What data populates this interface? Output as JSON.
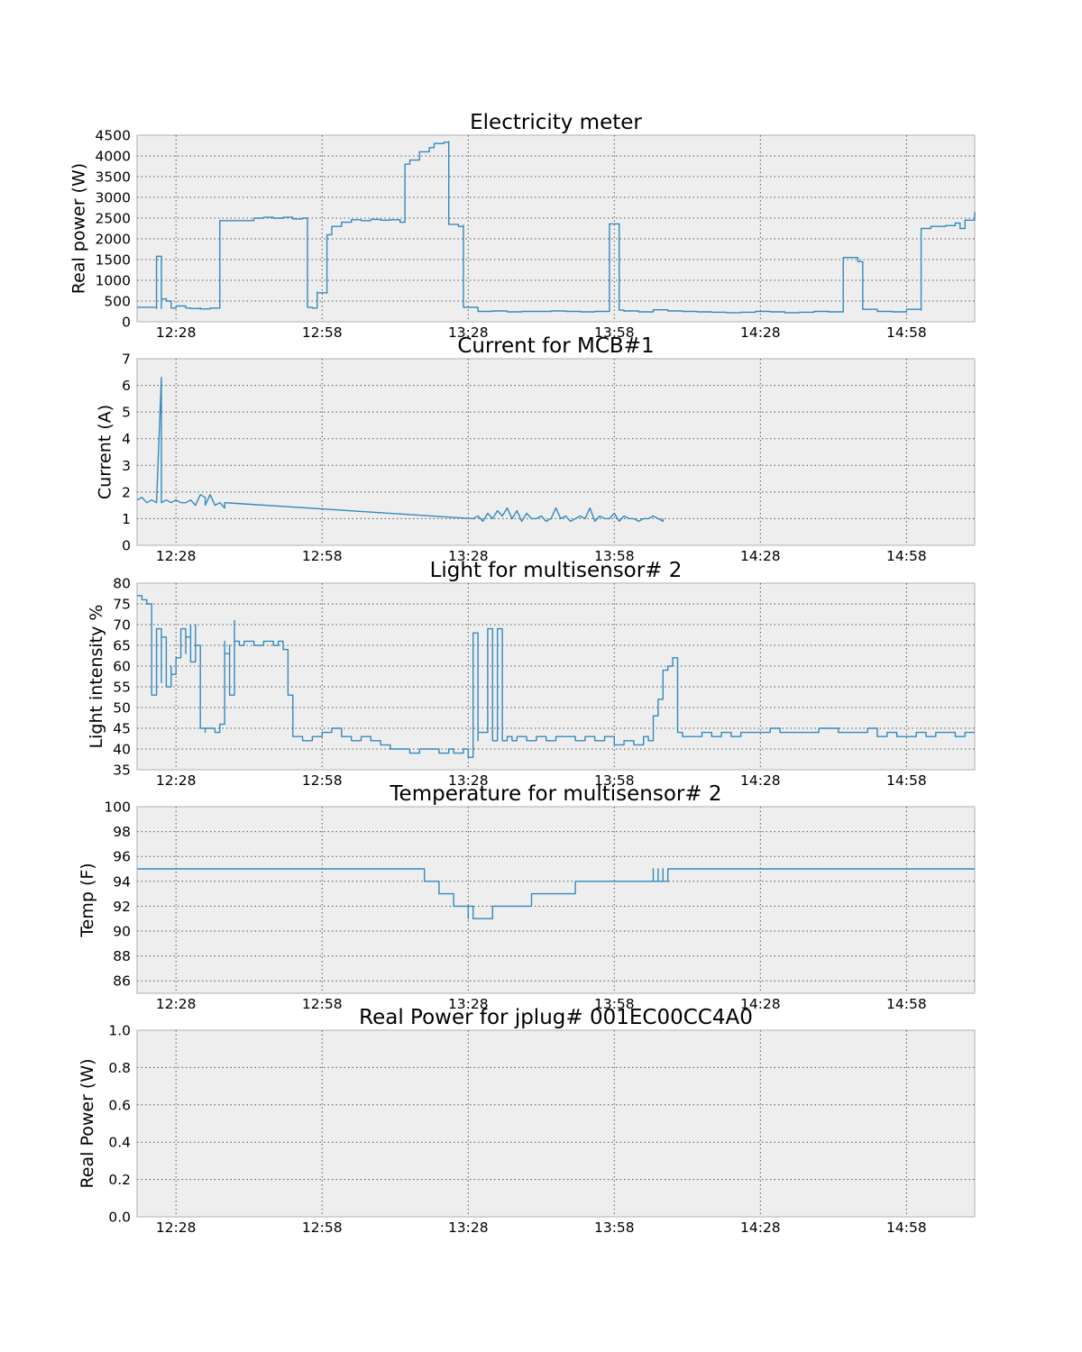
{
  "colors": {
    "series": "#348abd",
    "axes_bg": "#eeeeee",
    "axes_edge": "#bcbcbc"
  },
  "chart_data": [
    {
      "type": "line",
      "title": "Electricity meter",
      "ylabel": "Real power (W)",
      "xlabel": "",
      "xlim": [
        "12:20",
        "15:12"
      ],
      "ylim": [
        0,
        4500
      ],
      "x_ticks": [
        "12:28",
        "12:58",
        "13:28",
        "13:58",
        "14:28",
        "14:58"
      ],
      "y_ticks": [
        "500",
        "1000",
        "1500",
        "2000",
        "2500",
        "3000",
        "3500",
        "4000",
        "4500"
      ],
      "y_tick_values": [
        500,
        1000,
        1500,
        2000,
        2500,
        3000,
        3500,
        4000,
        4500
      ],
      "y_bottom_label": "0",
      "grid": true,
      "step": true,
      "series": [
        {
          "x": [
            "12:20",
            "12:24",
            "12:24",
            "12:25",
            "12:25",
            "12:25",
            "12:26",
            "12:26",
            "12:26",
            "12:26",
            "12:27",
            "12:28",
            "12:28",
            "12:30",
            "12:31",
            "12:33",
            "12:33",
            "12:35",
            "12:37",
            "12:37",
            "12:44",
            "12:44",
            "12:46",
            "12:48",
            "12:50",
            "12:52",
            "12:54",
            "12:55",
            "12:55",
            "12:56",
            "12:57",
            "12:57",
            "12:59",
            "12:59",
            "13:00",
            "13:00",
            "13:02",
            "13:04",
            "13:06",
            "13:08",
            "13:10",
            "13:12",
            "13:14",
            "13:14",
            "13:15",
            "13:16",
            "13:18",
            "13:20",
            "13:21",
            "13:23",
            "13:24",
            "13:24",
            "13:26",
            "13:27",
            "13:27",
            "13:30",
            "13:33",
            "13:36",
            "13:39",
            "13:42",
            "13:45",
            "13:48",
            "13:51",
            "13:54",
            "13:57",
            "13:57",
            "13:59",
            "13:59",
            "14:00",
            "14:00",
            "14:03",
            "14:06",
            "14:09",
            "14:12",
            "14:15",
            "14:18",
            "14:21",
            "14:24",
            "14:27",
            "14:30",
            "14:33",
            "14:36",
            "14:39",
            "14:42",
            "14:45",
            "14:45",
            "14:48",
            "14:49",
            "14:49",
            "14:52",
            "14:55",
            "14:58",
            "14:58",
            "15:01",
            "15:01",
            "15:03",
            "15:06",
            "15:08",
            "15:09",
            "15:10",
            "15:10",
            "15:12"
          ],
          "values": [
            350,
            320,
            1580,
            320,
            380,
            550,
            540,
            560,
            540,
            500,
            330,
            340,
            380,
            330,
            320,
            340,
            310,
            330,
            340,
            2440,
            2480,
            2500,
            2520,
            2500,
            2520,
            2480,
            2500,
            380,
            350,
            330,
            720,
            700,
            690,
            2100,
            2200,
            2300,
            2400,
            2460,
            2440,
            2470,
            2450,
            2460,
            2420,
            2400,
            3800,
            3900,
            4100,
            4200,
            4300,
            4330,
            4350,
            2350,
            2300,
            2330,
            350,
            250,
            260,
            240,
            250,
            250,
            260,
            250,
            240,
            250,
            280,
            2360,
            2340,
            280,
            250,
            260,
            240,
            290,
            260,
            250,
            240,
            230,
            220,
            230,
            250,
            240,
            220,
            230,
            250,
            240,
            250,
            1550,
            1450,
            1380,
            300,
            250,
            240,
            250,
            300,
            280,
            2250,
            2300,
            2320,
            2380,
            2250,
            2400,
            2450,
            2650
          ]
        }
      ]
    },
    {
      "type": "line",
      "title": "Current for MCB#1",
      "ylabel": "Current (A)",
      "xlabel": "",
      "xlim": [
        "12:20",
        "15:12"
      ],
      "ylim": [
        0,
        7
      ],
      "x_ticks": [
        "12:28",
        "12:58",
        "13:28",
        "13:58",
        "14:28",
        "14:58"
      ],
      "y_ticks": [
        "0",
        "1",
        "2",
        "3",
        "4",
        "5",
        "6",
        "7"
      ],
      "y_tick_values": [
        0,
        1,
        2,
        3,
        4,
        5,
        6,
        7
      ],
      "grid": true,
      "step": false,
      "series": [
        {
          "x": [
            "12:20",
            "12:21",
            "12:22",
            "12:23",
            "12:24",
            "12:25",
            "12:25",
            "12:25",
            "12:26",
            "12:27",
            "12:28",
            "12:29",
            "12:30",
            "12:31",
            "12:32",
            "12:33",
            "12:34",
            "12:34",
            "12:35",
            "12:36",
            "12:37",
            "12:38",
            "12:38",
            "13:29",
            "13:30",
            "13:31",
            "13:32",
            "13:33",
            "13:34",
            "13:35",
            "13:36",
            "13:37",
            "13:38",
            "13:39",
            "13:40",
            "13:41",
            "13:42",
            "13:43",
            "13:44",
            "13:45",
            "13:46",
            "13:47",
            "13:48",
            "13:49",
            "13:50",
            "13:51",
            "13:52",
            "13:53",
            "13:54",
            "13:55",
            "13:56",
            "13:57",
            "13:58",
            "13:59",
            "14:00",
            "14:01",
            "14:02",
            "14:03",
            "14:04",
            "14:05",
            "14:06",
            "14:07",
            "14:08",
            "14:08"
          ],
          "values": [
            1.7,
            1.8,
            1.6,
            1.7,
            1.6,
            6.3,
            6.3,
            1.6,
            1.7,
            1.6,
            1.7,
            1.6,
            1.6,
            1.7,
            1.5,
            1.9,
            1.8,
            1.5,
            1.9,
            1.5,
            1.6,
            1.4,
            1.6,
            1.0,
            1.1,
            0.9,
            1.2,
            1.0,
            1.3,
            1.1,
            1.4,
            1.0,
            1.3,
            0.9,
            1.2,
            1.0,
            1.0,
            1.1,
            0.9,
            1.0,
            1.4,
            1.0,
            1.1,
            0.9,
            1.0,
            1.1,
            1.0,
            1.4,
            0.9,
            1.1,
            1.0,
            1.0,
            1.2,
            0.9,
            1.1,
            1.0,
            1.0,
            0.9,
            1.0,
            1.0,
            1.1,
            1.0,
            0.9,
            1.0
          ]
        }
      ]
    },
    {
      "type": "line",
      "title": "Light for multisensor# 2",
      "ylabel": "Light intensity %",
      "xlabel": "",
      "xlim": [
        "12:20",
        "15:12"
      ],
      "ylim": [
        35,
        80
      ],
      "x_ticks": [
        "12:28",
        "12:58",
        "13:28",
        "13:58",
        "14:28",
        "14:58"
      ],
      "y_ticks": [
        "35",
        "40",
        "45",
        "50",
        "55",
        "60",
        "65",
        "70",
        "75",
        "80"
      ],
      "y_tick_values": [
        35,
        40,
        45,
        50,
        55,
        60,
        65,
        70,
        75,
        80
      ],
      "grid": true,
      "step": true,
      "series": [
        {
          "x": [
            "12:20",
            "12:21",
            "12:22",
            "12:23",
            "12:23",
            "12:24",
            "12:24",
            "12:25",
            "12:25",
            "12:26",
            "12:26",
            "12:27",
            "12:27",
            "12:28",
            "12:29",
            "12:29",
            "12:30",
            "12:30",
            "12:31",
            "12:31",
            "12:32",
            "12:32",
            "12:33",
            "12:33",
            "12:34",
            "12:34",
            "12:36",
            "12:37",
            "12:37",
            "12:38",
            "12:38",
            "12:39",
            "12:39",
            "12:40",
            "12:40",
            "12:41",
            "12:42",
            "12:44",
            "12:46",
            "12:48",
            "12:49",
            "12:50",
            "12:51",
            "12:51",
            "12:52",
            "12:54",
            "12:56",
            "12:58",
            "13:00",
            "13:02",
            "13:04",
            "13:06",
            "13:08",
            "13:10",
            "13:12",
            "13:14",
            "13:16",
            "13:18",
            "13:20",
            "13:22",
            "13:24",
            "13:25",
            "13:27",
            "13:28",
            "13:29",
            "13:29",
            "13:30",
            "13:30",
            "13:32",
            "13:32",
            "13:33",
            "13:33",
            "13:34",
            "13:34",
            "13:35",
            "13:35",
            "13:36",
            "13:37",
            "13:38",
            "13:40",
            "13:42",
            "13:44",
            "13:46",
            "13:48",
            "13:50",
            "13:52",
            "13:54",
            "13:56",
            "13:58",
            "14:00",
            "14:02",
            "14:04",
            "14:05",
            "14:06",
            "14:07",
            "14:08",
            "14:09",
            "14:10",
            "14:11",
            "14:11",
            "14:12",
            "14:14",
            "14:16",
            "14:18",
            "14:20",
            "14:22",
            "14:24",
            "14:26",
            "14:28",
            "14:30",
            "14:32",
            "14:34",
            "14:36",
            "14:38",
            "14:40",
            "14:42",
            "14:44",
            "14:46",
            "14:48",
            "14:50",
            "14:52",
            "14:54",
            "14:56",
            "14:58",
            "15:00",
            "15:02",
            "15:04",
            "15:06",
            "15:08",
            "15:10",
            "15:12"
          ],
          "values": [
            77,
            76,
            75,
            70,
            53,
            60,
            69,
            56,
            67,
            62,
            55,
            60,
            58,
            62,
            65,
            69,
            63,
            67,
            70,
            61,
            70,
            65,
            50,
            45,
            44,
            45,
            44,
            45,
            46,
            66,
            63,
            65,
            53,
            71,
            66,
            65,
            66,
            65,
            66,
            65,
            66,
            64,
            62,
            53,
            43,
            42,
            43,
            44,
            45,
            43,
            42,
            43,
            42,
            41,
            40,
            40,
            39,
            40,
            40,
            39,
            40,
            39,
            40,
            38,
            43,
            68,
            42,
            44,
            66,
            69,
            43,
            42,
            44,
            69,
            43,
            42,
            43,
            42,
            43,
            42,
            43,
            42,
            43,
            43,
            42,
            43,
            42,
            43,
            41,
            42,
            41,
            43,
            42,
            48,
            52,
            59,
            60,
            62,
            60,
            44,
            43,
            43,
            44,
            43,
            44,
            43,
            44,
            44,
            44,
            45,
            44,
            44,
            44,
            44,
            45,
            45,
            44,
            44,
            44,
            45,
            43,
            44,
            43,
            43,
            44,
            43,
            44,
            44,
            43,
            44,
            44
          ]
        }
      ]
    },
    {
      "type": "line",
      "title": "Temperature for multisensor# 2",
      "ylabel": "Temp (F)",
      "xlabel": "",
      "xlim": [
        "12:20",
        "15:12"
      ],
      "ylim": [
        85,
        100
      ],
      "x_ticks": [
        "12:28",
        "12:58",
        "13:28",
        "13:58",
        "14:28",
        "14:58"
      ],
      "y_ticks": [
        "86",
        "88",
        "90",
        "92",
        "94",
        "96",
        "98",
        "100"
      ],
      "y_tick_values": [
        86,
        88,
        90,
        92,
        94,
        96,
        98,
        100
      ],
      "grid": true,
      "step": true,
      "series": [
        {
          "x": [
            "12:20",
            "13:19",
            "13:22",
            "13:25",
            "13:28",
            "13:28",
            "13:29",
            "13:30",
            "13:33",
            "13:37",
            "13:41",
            "13:45",
            "13:50",
            "13:55",
            "14:00",
            "14:05",
            "14:06",
            "14:06",
            "14:07",
            "14:07",
            "14:08",
            "14:08",
            "14:09",
            "15:12"
          ],
          "values": [
            95,
            94,
            93,
            92,
            91,
            92,
            91,
            91,
            92,
            92,
            93,
            93,
            94,
            94,
            94,
            94,
            95,
            94,
            95,
            94,
            95,
            94,
            95,
            95
          ]
        }
      ]
    },
    {
      "type": "line",
      "title": "Real Power for jplug# 001EC00CC4A0",
      "ylabel": "Real Power (W)",
      "xlabel": "",
      "xlim": [
        "12:20",
        "15:12"
      ],
      "ylim": [
        0,
        1
      ],
      "x_ticks": [
        "12:28",
        "12:58",
        "13:28",
        "13:58",
        "14:28",
        "14:58"
      ],
      "y_ticks": [
        "0.0",
        "0.2",
        "0.4",
        "0.6",
        "0.8",
        "1.0"
      ],
      "y_tick_values": [
        0,
        0.2,
        0.4,
        0.6,
        0.8,
        1.0
      ],
      "grid": true,
      "step": false,
      "series": []
    }
  ]
}
